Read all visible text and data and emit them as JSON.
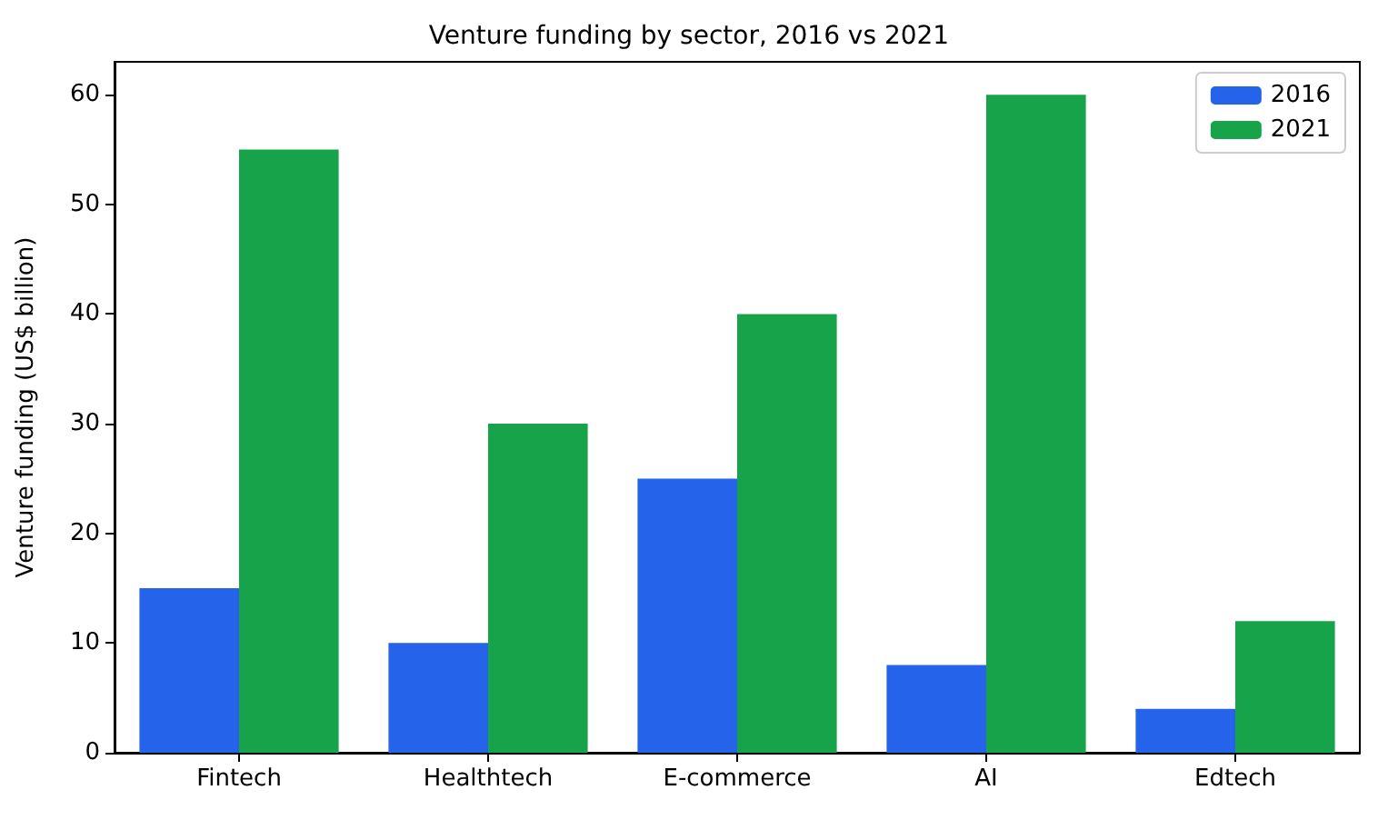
{
  "chart_data": {
    "type": "bar",
    "title": "Venture funding by sector, 2016 vs 2021",
    "ylabel": "Venture funding (US$ billion)",
    "categories": [
      "Fintech",
      "Healthtech",
      "E-commerce",
      "AI",
      "Edtech"
    ],
    "series": [
      {
        "name": "2016",
        "color": "#2563eb",
        "values": [
          15,
          10,
          25,
          8,
          4
        ]
      },
      {
        "name": "2021",
        "color": "#16a34a",
        "values": [
          55,
          30,
          40,
          60,
          12
        ]
      }
    ],
    "ylim": [
      0,
      63
    ],
    "yticks": [
      0,
      10,
      20,
      30,
      40,
      50,
      60
    ],
    "legend": "top right"
  }
}
